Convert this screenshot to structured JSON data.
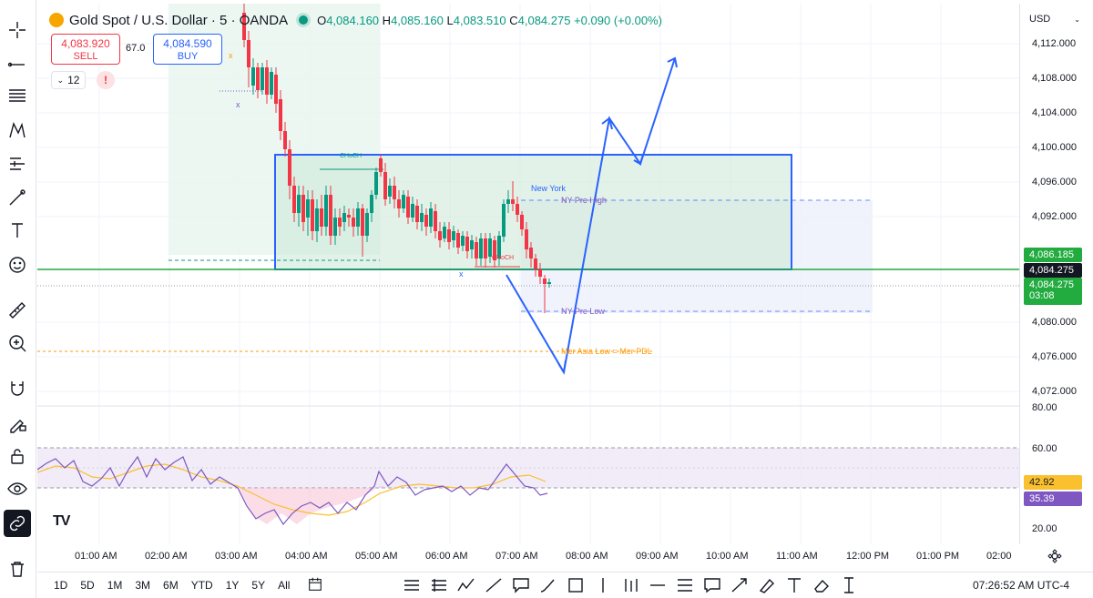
{
  "header": {
    "symbol_title": "Gold Spot / U.S. Dollar · 5 · OANDA",
    "ohlc": {
      "o": "4,084.160",
      "h": "4,085.160",
      "l": "4,083.510",
      "c": "4,084.275",
      "change": "+0.090 (+0.00%)"
    },
    "sell_price": "4,083.920",
    "sell_label": "SELL",
    "buy_price": "4,084.590",
    "buy_label": "BUY",
    "spread": "67.0",
    "indicator_count": "12",
    "alert": "!"
  },
  "currency": "USD",
  "price_axis": [
    "4,112.000",
    "4,108.000",
    "4,104.000",
    "4,100.000",
    "4,096.000",
    "4,092.000",
    "4,080.000",
    "4,076.000",
    "4,072.000",
    "80.00",
    "60.00",
    "20.00"
  ],
  "price_tags": {
    "green_level": "4,086.185",
    "last_price": "4,084.275",
    "current_price": "4,084.275",
    "countdown": "03:08",
    "rsi_ma": "42.92",
    "rsi": "35.39"
  },
  "annotations": {
    "choch_top": "CHoCH",
    "choch_bottom": "CHoCH",
    "session": "New York",
    "ny_pre_high": "NY Pre High",
    "ny_pre_low": "NY Pre Low",
    "asia_low": "Mer Asia Low = Mer PDL"
  },
  "time_axis": [
    "01:00 AM",
    "02:00 AM",
    "03:00 AM",
    "04:00 AM",
    "05:00 AM",
    "06:00 AM",
    "07:00 AM",
    "08:00 AM",
    "09:00 AM",
    "10:00 AM",
    "11:00 AM",
    "12:00 PM",
    "01:00 PM",
    "02:00"
  ],
  "ranges": [
    "1D",
    "5D",
    "1M",
    "3M",
    "6M",
    "YTD",
    "1Y",
    "5Y",
    "All"
  ],
  "clock": "07:26:52 AM UTC-4",
  "logo": "TV",
  "colors": {
    "up": "#089981",
    "down": "#f23645",
    "accent": "#2962ff",
    "rsi": "#7e57c2",
    "rsi_ma": "#fbc02d",
    "orange": "#ff9800"
  }
}
